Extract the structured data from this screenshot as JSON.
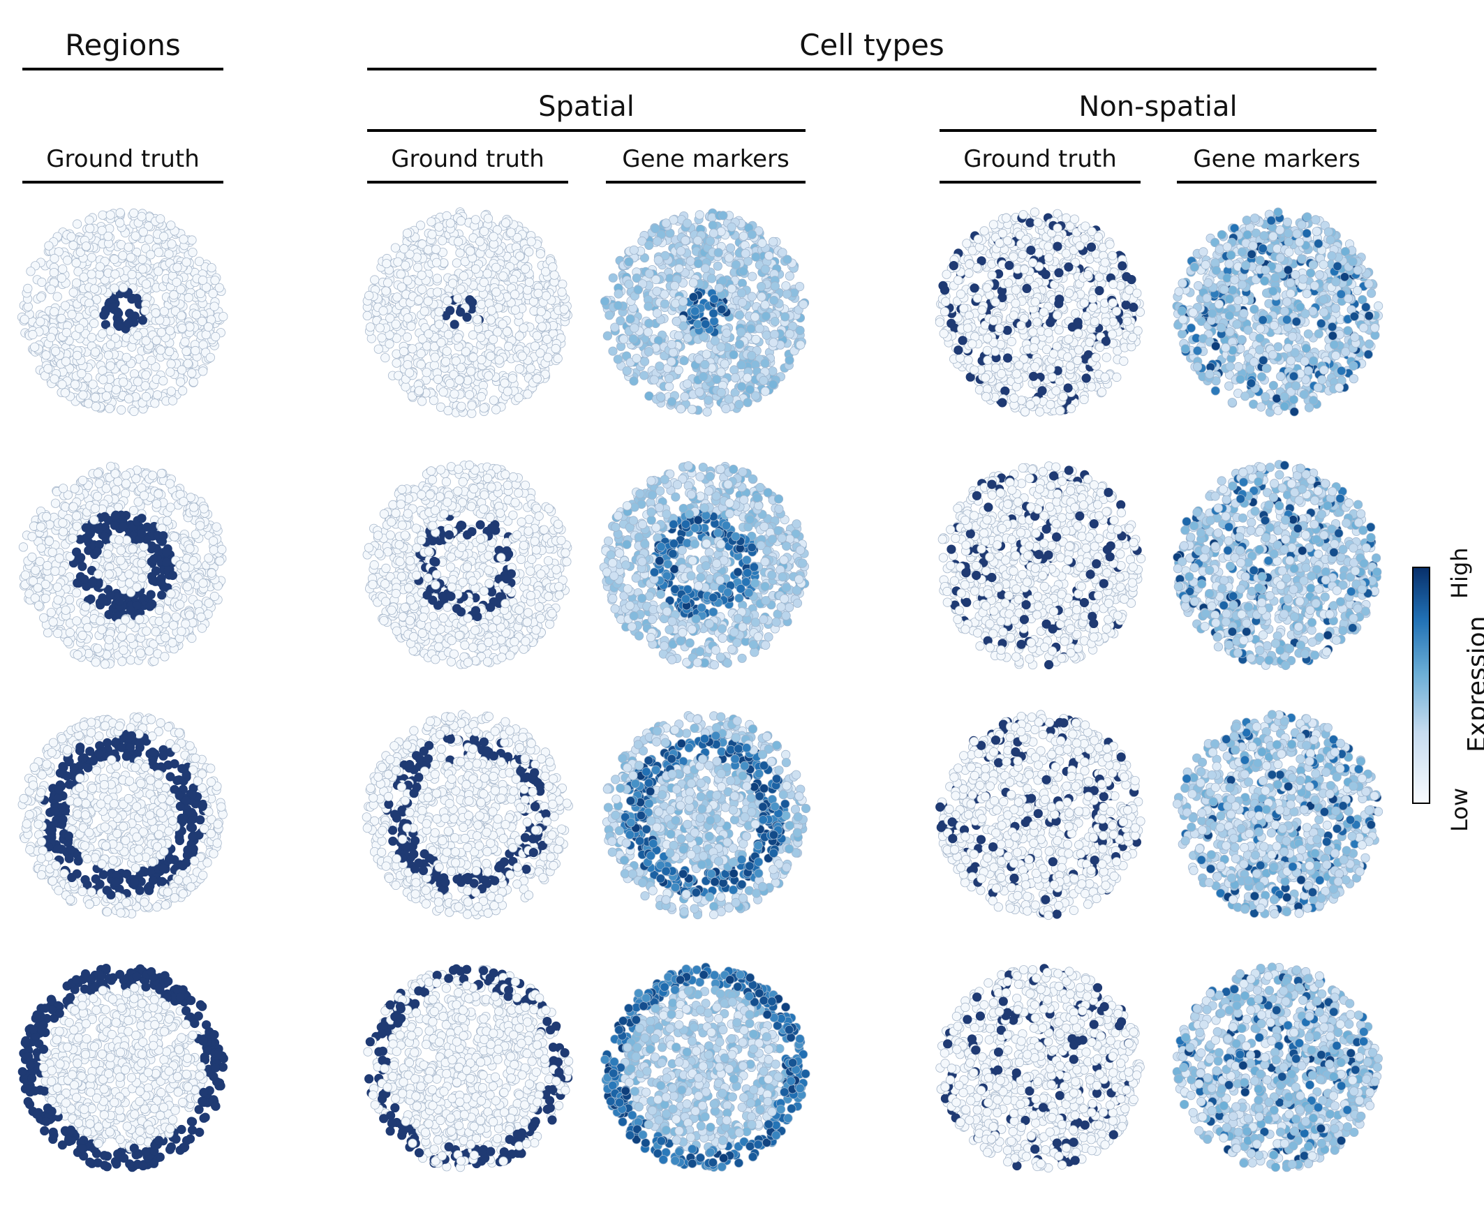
{
  "headers": {
    "regions": "Regions",
    "cell_types": "Cell types",
    "spatial": "Spatial",
    "non_spatial": "Non-spatial",
    "regions_ground_truth": "Ground truth",
    "spatial_ground_truth": "Ground truth",
    "spatial_gene_markers": "Gene markers",
    "nonspatial_ground_truth": "Ground truth",
    "nonspatial_gene_markers": "Gene markers"
  },
  "colorbar": {
    "label": "Expression",
    "high": "High",
    "low": "Low",
    "colors": [
      "#f7fbff",
      "#c6dbef",
      "#6baed6",
      "#2171b5",
      "#08306b"
    ]
  },
  "columns": [
    {
      "group": "Regions",
      "kind": "Ground truth"
    },
    {
      "group": "Spatial",
      "kind": "Ground truth"
    },
    {
      "group": "Spatial",
      "kind": "Gene markers"
    },
    {
      "group": "Non-spatial",
      "kind": "Ground truth"
    },
    {
      "group": "Non-spatial",
      "kind": "Gene markers"
    }
  ],
  "rows": [
    {
      "pattern": "center",
      "inner": 0.0,
      "outer": 0.22
    },
    {
      "pattern": "ring",
      "inner": 0.28,
      "outer": 0.52
    },
    {
      "pattern": "ring",
      "inner": 0.56,
      "outer": 0.8
    },
    {
      "pattern": "ring",
      "inner": 0.8,
      "outer": 1.0
    }
  ],
  "colors": {
    "dark": "#1f3a73",
    "light_fill": "#f4f8fc",
    "light_stroke": "#a8b8cc"
  }
}
